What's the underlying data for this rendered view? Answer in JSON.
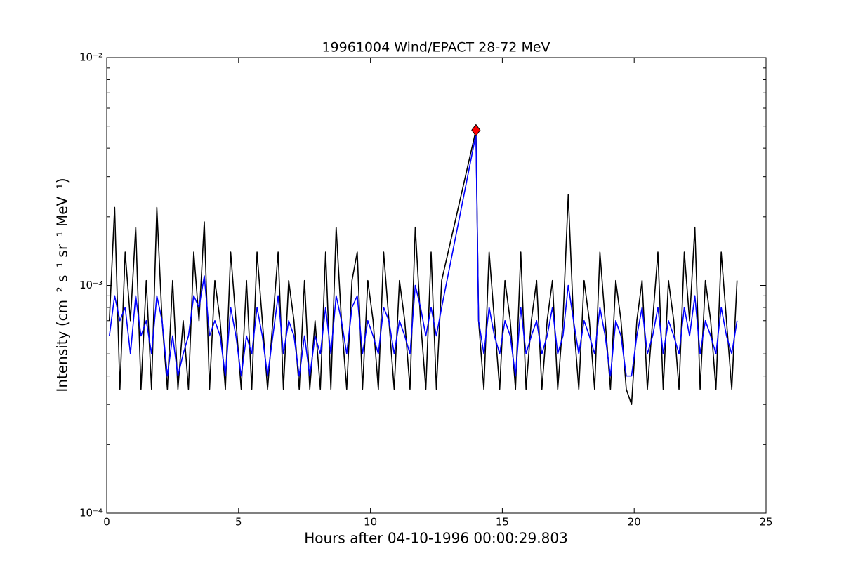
{
  "chart_data": {
    "type": "line",
    "title": "19961004 Wind/EPACT 28-72 MeV",
    "xlabel": "Hours after 04-10-1996 00:00:29.803",
    "ylabel": "Intensity (cm⁻² s⁻¹ sr⁻¹ MeV⁻¹)",
    "yscale": "log",
    "xlim": [
      0,
      25
    ],
    "xticks": [
      0,
      5,
      10,
      15,
      20,
      25
    ],
    "ylim": [
      0.0001,
      0.01
    ],
    "yticks": [
      {
        "value": 0.0001,
        "label": "10⁻⁴"
      },
      {
        "value": 0.001,
        "label": "10⁻³"
      },
      {
        "value": 0.01,
        "label": "10⁻²"
      }
    ],
    "yminorticks": [
      0.0002,
      0.0003,
      0.0004,
      0.0005,
      0.0006,
      0.0007,
      0.0008,
      0.0009,
      0.002,
      0.003,
      0.004,
      0.005,
      0.006,
      0.007,
      0.008,
      0.009
    ],
    "x": [
      0.1,
      0.3,
      0.5,
      0.7,
      0.9,
      1.1,
      1.3,
      1.5,
      1.7,
      1.9,
      2.1,
      2.3,
      2.5,
      2.7,
      2.9,
      3.1,
      3.3,
      3.5,
      3.7,
      3.9,
      4.1,
      4.3,
      4.5,
      4.7,
      4.9,
      5.1,
      5.3,
      5.5,
      5.7,
      5.9,
      6.1,
      6.3,
      6.5,
      6.7,
      6.9,
      7.1,
      7.3,
      7.5,
      7.7,
      7.9,
      8.1,
      8.3,
      8.5,
      8.7,
      8.9,
      9.1,
      9.3,
      9.5,
      9.7,
      9.9,
      10.1,
      10.3,
      10.5,
      10.7,
      10.9,
      11.1,
      11.3,
      11.5,
      11.7,
      11.9,
      12.1,
      12.3,
      12.5,
      12.7,
      14.0,
      14.1,
      14.3,
      14.5,
      14.7,
      14.9,
      15.1,
      15.3,
      15.5,
      15.7,
      15.9,
      16.1,
      16.3,
      16.5,
      16.7,
      16.9,
      17.1,
      17.3,
      17.5,
      17.7,
      17.9,
      18.1,
      18.3,
      18.5,
      18.7,
      18.9,
      19.1,
      19.3,
      19.5,
      19.7,
      19.9,
      20.1,
      20.3,
      20.5,
      20.7,
      20.9,
      21.1,
      21.3,
      21.5,
      21.7,
      21.9,
      22.1,
      22.3,
      22.5,
      22.7,
      22.9,
      23.1,
      23.3,
      23.5,
      23.7,
      23.9
    ],
    "series": [
      {
        "color": "#000000",
        "values": [
          0.0007,
          0.0022,
          0.00035,
          0.0014,
          0.0007,
          0.0018,
          0.00035,
          0.00105,
          0.00035,
          0.0022,
          0.0007,
          0.00035,
          0.00105,
          0.00035,
          0.0007,
          0.00035,
          0.0014,
          0.0007,
          0.0019,
          0.00035,
          0.00105,
          0.0007,
          0.00035,
          0.0014,
          0.0007,
          0.00035,
          0.00105,
          0.00035,
          0.0014,
          0.0007,
          0.00035,
          0.0007,
          0.0014,
          0.00035,
          0.00105,
          0.0007,
          0.00035,
          0.00105,
          0.00035,
          0.0007,
          0.00035,
          0.0014,
          0.00035,
          0.0018,
          0.0007,
          0.00035,
          0.00105,
          0.0014,
          0.00035,
          0.00105,
          0.0007,
          0.00035,
          0.0014,
          0.0007,
          0.00035,
          0.00105,
          0.0007,
          0.00035,
          0.0018,
          0.0007,
          0.00035,
          0.0014,
          0.00035,
          0.00105,
          0.0048,
          0.0007,
          0.00035,
          0.0014,
          0.0007,
          0.00035,
          0.00105,
          0.0007,
          0.00035,
          0.0014,
          0.00035,
          0.0007,
          0.00105,
          0.00035,
          0.0007,
          0.00105,
          0.00035,
          0.0007,
          0.0025,
          0.0007,
          0.00035,
          0.00105,
          0.0007,
          0.00035,
          0.0014,
          0.0007,
          0.00035,
          0.00105,
          0.0007,
          0.00035,
          0.0003,
          0.0007,
          0.00105,
          0.00035,
          0.0007,
          0.0014,
          0.00035,
          0.00105,
          0.0007,
          0.00035,
          0.0014,
          0.0007,
          0.0018,
          0.00035,
          0.00105,
          0.0007,
          0.00035,
          0.0014,
          0.0007,
          0.00035,
          0.00105
        ]
      },
      {
        "color": "#0000ff",
        "values": [
          0.0006,
          0.0009,
          0.0007,
          0.0008,
          0.0005,
          0.0009,
          0.0006,
          0.0007,
          0.0005,
          0.0009,
          0.0007,
          0.0004,
          0.0006,
          0.0004,
          0.0005,
          0.0006,
          0.0009,
          0.0008,
          0.0011,
          0.0006,
          0.0007,
          0.0006,
          0.0004,
          0.0008,
          0.0006,
          0.0004,
          0.0006,
          0.0005,
          0.0008,
          0.0006,
          0.0004,
          0.0006,
          0.0009,
          0.0005,
          0.0007,
          0.0006,
          0.0004,
          0.0006,
          0.0004,
          0.0006,
          0.0005,
          0.0008,
          0.0005,
          0.0009,
          0.0007,
          0.0005,
          0.0008,
          0.0009,
          0.0005,
          0.0007,
          0.0006,
          0.0005,
          0.0008,
          0.0007,
          0.0005,
          0.0007,
          0.0006,
          0.0005,
          0.001,
          0.0008,
          0.0006,
          0.0008,
          0.0006,
          0.0008,
          0.0046,
          0.0007,
          0.0005,
          0.0008,
          0.0006,
          0.0005,
          0.0007,
          0.0006,
          0.0004,
          0.0008,
          0.0005,
          0.0006,
          0.0007,
          0.0005,
          0.0006,
          0.0008,
          0.0005,
          0.0006,
          0.001,
          0.0007,
          0.0005,
          0.0007,
          0.0006,
          0.0005,
          0.0008,
          0.0006,
          0.0004,
          0.0007,
          0.0006,
          0.0004,
          0.0004,
          0.0006,
          0.0008,
          0.0005,
          0.0006,
          0.0008,
          0.0005,
          0.0007,
          0.0006,
          0.0005,
          0.0008,
          0.0006,
          0.0009,
          0.0005,
          0.0007,
          0.0006,
          0.0005,
          0.0008,
          0.0006,
          0.0005,
          0.0007
        ]
      }
    ],
    "peak": {
      "x": 14.0,
      "value": 0.0048,
      "color": "#ff0000"
    }
  }
}
